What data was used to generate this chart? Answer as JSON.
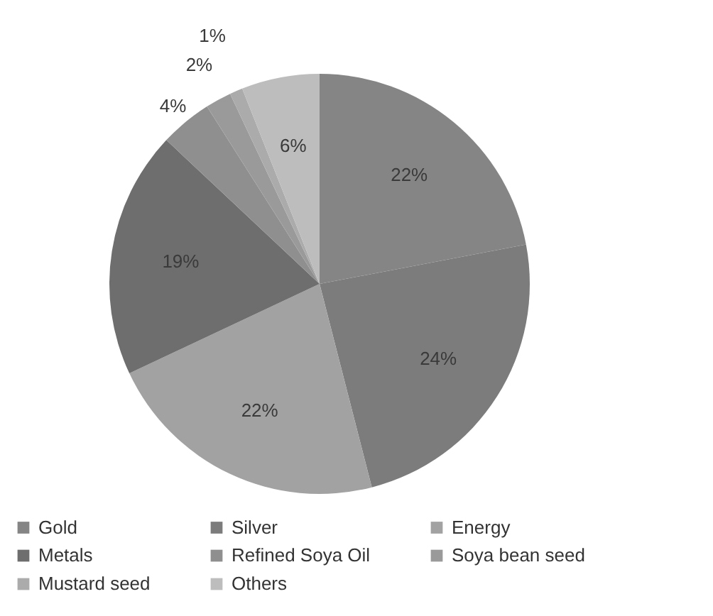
{
  "chart_data": {
    "type": "pie",
    "categories": [
      "Gold",
      "Silver",
      "Energy",
      "Metals",
      "Refined Soya Oil",
      "Soya bean seed",
      "Mustard seed",
      "Others"
    ],
    "values": [
      22,
      24,
      22,
      19,
      4,
      2,
      1,
      6
    ],
    "value_labels": [
      "22%",
      "24%",
      "22%",
      "19%",
      "4%",
      "2%",
      "1%",
      "6%"
    ],
    "colors": [
      "#858585",
      "#7c7c7c",
      "#a2a2a2",
      "#6e6e6e",
      "#8f8f8f",
      "#9a9a9a",
      "#ababab",
      "#bdbdbd"
    ],
    "legend": "bottom"
  }
}
